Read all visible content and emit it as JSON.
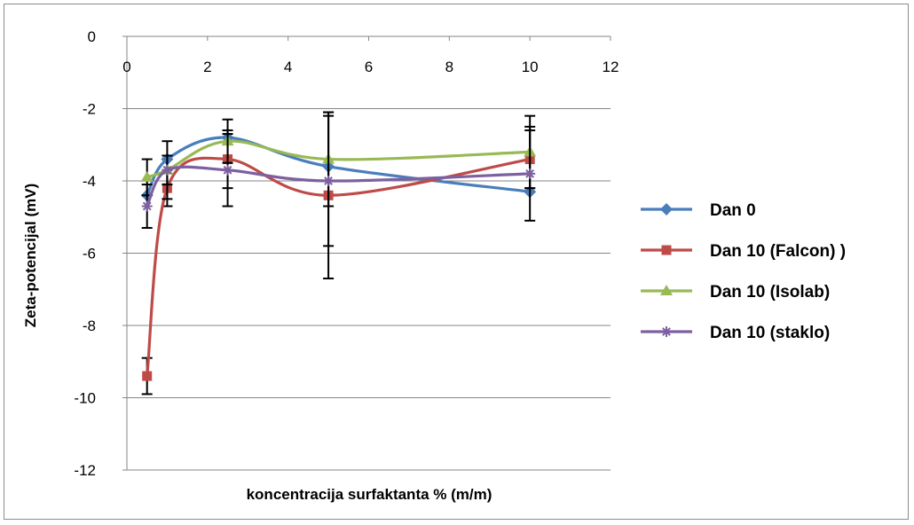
{
  "chart_data": {
    "type": "line",
    "title": "",
    "xlabel": "koncentracija surfaktanta % (m/m)",
    "ylabel": "Zeta-potencijal (mV)",
    "xlim": [
      0,
      12
    ],
    "ylim": [
      -12,
      0
    ],
    "x_ticks": [
      0,
      2,
      4,
      6,
      8,
      10,
      12
    ],
    "y_ticks": [
      0,
      -2,
      -4,
      -6,
      -8,
      -10,
      -12
    ],
    "grid": "horizontal",
    "legend_position": "right",
    "series": [
      {
        "name": "Dan 0",
        "color": "#4a7ebb",
        "marker": "diamond",
        "x": [
          0.5,
          1,
          2.5,
          5,
          10
        ],
        "y": [
          -4.4,
          -3.4,
          -2.8,
          -3.6,
          -4.3
        ],
        "error": [
          0,
          0,
          0,
          0,
          0
        ]
      },
      {
        "name": "Dan 10 (Falcon) )",
        "color": "#be4b48",
        "marker": "square",
        "x": [
          0.5,
          1,
          2.5,
          5,
          10
        ],
        "y": [
          -9.4,
          -4.2,
          -3.4,
          -4.4,
          -3.4
        ],
        "error": [
          0.5,
          0.5,
          0.8,
          2.3,
          0.8
        ]
      },
      {
        "name": "Dan 10 (Isolab)",
        "color": "#98b954",
        "marker": "triangle",
        "x": [
          0.5,
          1,
          2.5,
          5,
          10
        ],
        "y": [
          -3.9,
          -3.7,
          -2.9,
          -3.4,
          -3.2
        ],
        "error": [
          0.5,
          0.8,
          0.6,
          1.3,
          1.0
        ]
      },
      {
        "name": "Dan 10 (staklo)",
        "color": "#7d60a0",
        "marker": "star",
        "x": [
          0.5,
          1,
          2.5,
          5,
          10
        ],
        "y": [
          -4.7,
          -3.7,
          -3.7,
          -4.0,
          -3.8
        ],
        "error": [
          0.6,
          0.4,
          1.0,
          1.8,
          1.3
        ]
      }
    ]
  }
}
